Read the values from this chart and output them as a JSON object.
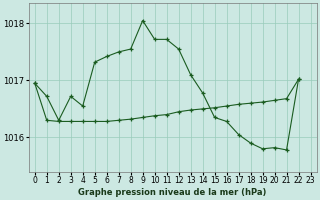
{
  "title": "Graphe pression niveau de la mer (hPa)",
  "bg_color": "#cce8e2",
  "line_color": "#1a5c20",
  "grid_color": "#99ccbb",
  "ylim": [
    1015.4,
    1018.35
  ],
  "yticks": [
    1016,
    1017,
    1018
  ],
  "xlim": [
    -0.5,
    23.5
  ],
  "xticks": [
    0,
    1,
    2,
    3,
    4,
    5,
    6,
    7,
    8,
    9,
    10,
    11,
    12,
    13,
    14,
    15,
    16,
    17,
    18,
    19,
    20,
    21,
    22,
    23
  ],
  "series_upper": {
    "x": [
      0,
      1,
      2,
      3,
      4,
      5,
      6,
      7,
      8,
      9,
      10,
      11,
      12,
      13,
      14,
      15,
      16,
      17,
      18,
      19,
      20,
      21,
      22
    ],
    "y": [
      1016.95,
      1016.72,
      1016.3,
      1016.72,
      1016.55,
      1017.32,
      1017.42,
      1017.5,
      1017.55,
      1018.05,
      1017.72,
      1017.72,
      1017.55,
      1017.1,
      1016.78,
      1016.35,
      1016.28,
      1016.05,
      1015.9,
      1015.8,
      1015.82,
      1015.78,
      1017.02
    ]
  },
  "series_lower": {
    "x": [
      0,
      1,
      2,
      3,
      4,
      5,
      6,
      7,
      8,
      9,
      10,
      11,
      12,
      13,
      14,
      15,
      16,
      17,
      18,
      19,
      20,
      21,
      22
    ],
    "y": [
      1016.95,
      1016.3,
      1016.28,
      1016.28,
      1016.28,
      1016.28,
      1016.28,
      1016.3,
      1016.32,
      1016.35,
      1016.38,
      1016.4,
      1016.45,
      1016.48,
      1016.5,
      1016.52,
      1016.55,
      1016.58,
      1016.6,
      1016.62,
      1016.65,
      1016.68,
      1017.02
    ]
  }
}
